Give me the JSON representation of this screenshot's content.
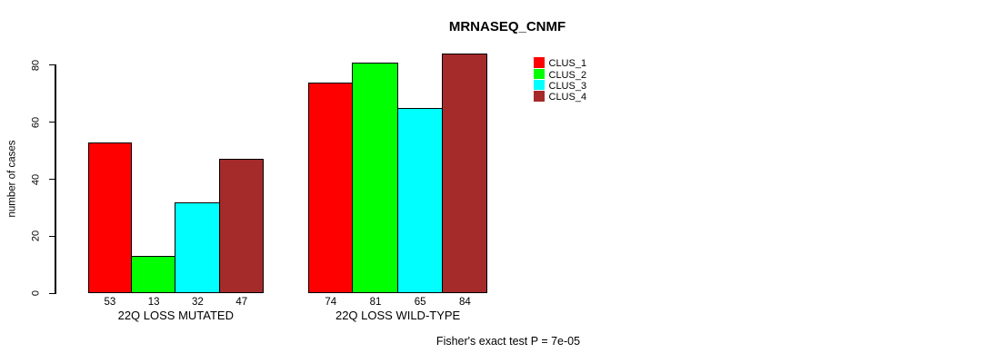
{
  "chart_data": {
    "type": "bar",
    "title": "MRNASEQ_CNMF",
    "ylabel": "number of cases",
    "xlabel": "",
    "ylim": [
      0,
      80
    ],
    "yticks": [
      0,
      20,
      40,
      60,
      80
    ],
    "grid": false,
    "legend_position": "right",
    "show_values": true,
    "categories": [
      "22Q LOSS MUTATED",
      "22Q LOSS WILD-TYPE"
    ],
    "groups": [
      {
        "label": "22Q LOSS MUTATED",
        "values": [
          53,
          13,
          32,
          47
        ]
      },
      {
        "label": "22Q LOSS WILD-TYPE",
        "values": [
          74,
          81,
          65,
          84
        ]
      }
    ],
    "series": [
      {
        "name": "CLUS_1",
        "color": "#FF0000"
      },
      {
        "name": "CLUS_2",
        "color": "#00FF00"
      },
      {
        "name": "CLUS_3",
        "color": "#00FFFF"
      },
      {
        "name": "CLUS_4",
        "color": "#A52A2A"
      }
    ],
    "annotation": "Fisher's exact test P = 7e-05"
  }
}
